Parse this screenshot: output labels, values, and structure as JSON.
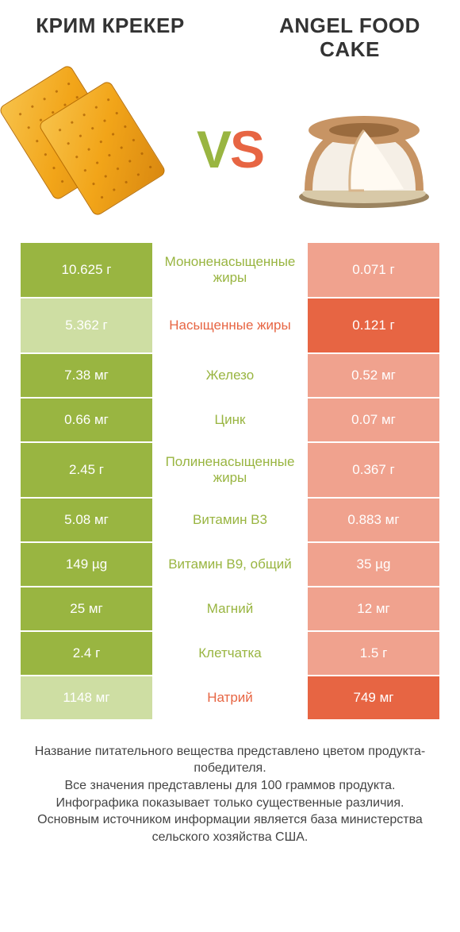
{
  "colors": {
    "left_win_bg": "#99b541",
    "left_lose_bg": "#cedea3",
    "right_win_bg": "#e76543",
    "right_lose_bg": "#f0a28e",
    "mid_bg": "#ffffff",
    "label_win_left": "#99b541",
    "label_win_right": "#e76543",
    "text_white": "#ffffff",
    "text_body": "#333333"
  },
  "header": {
    "left_title": "КРИМ КРЕКЕР",
    "right_title": "ANGEL FOOD CAKE",
    "vs_v": "V",
    "vs_s": "S"
  },
  "rows": [
    {
      "tall": true,
      "left": "10.625 г",
      "label": "Мононенасыщенные жиры",
      "right": "0.071 г",
      "winner": "left"
    },
    {
      "tall": true,
      "left": "5.362 г",
      "label": "Насыщенные жиры",
      "right": "0.121 г",
      "winner": "right"
    },
    {
      "tall": false,
      "left": "7.38 мг",
      "label": "Железо",
      "right": "0.52 мг",
      "winner": "left"
    },
    {
      "tall": false,
      "left": "0.66 мг",
      "label": "Цинк",
      "right": "0.07 мг",
      "winner": "left"
    },
    {
      "tall": true,
      "left": "2.45 г",
      "label": "Полиненасыщенные жиры",
      "right": "0.367 г",
      "winner": "left"
    },
    {
      "tall": false,
      "left": "5.08 мг",
      "label": "Витамин B3",
      "right": "0.883 мг",
      "winner": "left"
    },
    {
      "tall": false,
      "left": "149 µg",
      "label": "Витамин B9, общий",
      "right": "35 µg",
      "winner": "left"
    },
    {
      "tall": false,
      "left": "25 мг",
      "label": "Магний",
      "right": "12 мг",
      "winner": "left"
    },
    {
      "tall": false,
      "left": "2.4 г",
      "label": "Клетчатка",
      "right": "1.5 г",
      "winner": "left"
    },
    {
      "tall": false,
      "left": "1148 мг",
      "label": "Натрий",
      "right": "749 мг",
      "winner": "right"
    }
  ],
  "footnote": {
    "l1": "Название питательного вещества представлено цветом продукта-победителя.",
    "l2": "Все значения представлены для 100 граммов продукта.",
    "l3": "Инфографика показывает только существенные различия.",
    "l4": "Основным источником информации является база министерства сельского хозяйства США."
  }
}
